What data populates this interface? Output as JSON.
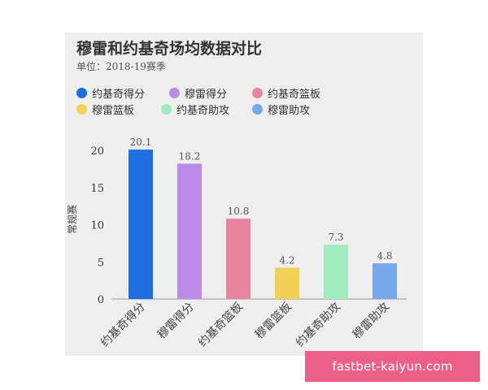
{
  "chart_data": {
    "type": "bar",
    "title": "穆雷和约基奇场均数据对比",
    "subtitle": "单位：2018-19赛季",
    "ylabel": "常规赛",
    "ylim": [
      0,
      20
    ],
    "yticks": [
      "0",
      "5",
      "10",
      "15",
      "20"
    ],
    "categories": [
      "约基奇得分",
      "穆雷得分",
      "约基奇篮板",
      "穆雷篮板",
      "约基奇助攻",
      "穆雷助攻"
    ],
    "values": [
      20.1,
      18.2,
      10.8,
      4.2,
      7.3,
      4.8
    ],
    "value_labels": [
      "20.1",
      "18.2",
      "10.8",
      "4.2",
      "7.3",
      "4.8"
    ],
    "colors": [
      "#1f6fe0",
      "#b98ae8",
      "#e9849f",
      "#f2d254",
      "#9eebc0",
      "#78a8ec"
    ],
    "legend": [
      {
        "label": "约基奇得分",
        "color": "#1f6fe0"
      },
      {
        "label": "穆雷得分",
        "color": "#b98ae8"
      },
      {
        "label": "约基奇篮板",
        "color": "#e9849f"
      },
      {
        "label": "穆雷篮板",
        "color": "#f2d254"
      },
      {
        "label": "约基奇助攻",
        "color": "#9eebc0"
      },
      {
        "label": "穆雷助攻",
        "color": "#78a8ec"
      }
    ],
    "grid": false,
    "legend_position": "top-left"
  },
  "watermark": "fastbet-kaiyun.com"
}
